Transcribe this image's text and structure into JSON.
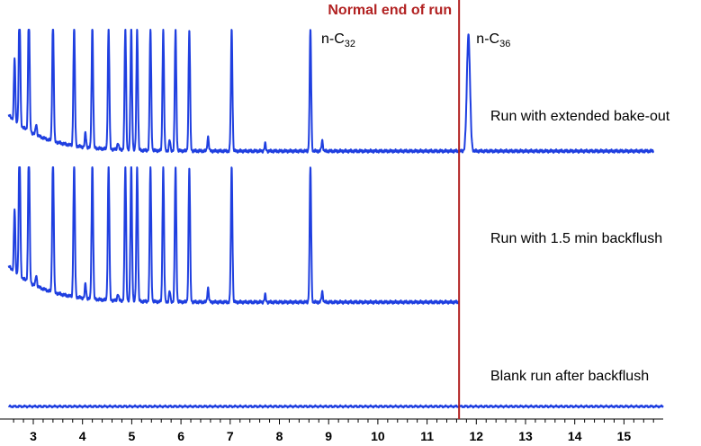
{
  "chart_data": {
    "type": "line",
    "title": "",
    "xlabel": "",
    "ylabel": "",
    "xlim": [
      2.5,
      15.8
    ],
    "xticks": [
      3,
      4,
      5,
      6,
      7,
      8,
      9,
      10,
      11,
      12,
      13,
      14,
      15
    ],
    "grid": false,
    "legend": "none",
    "colors": {
      "trace": "#1f3fe0",
      "marker": "#b22222",
      "axis": "#000000"
    },
    "marker_line": {
      "x": 11.65,
      "label": "Normal end of run"
    },
    "series": [
      {
        "name": "Run with extended bake-out",
        "end_x": 15.6,
        "offset_index": 0
      },
      {
        "name": "Run with 1.5 min backflush",
        "end_x": 11.65,
        "offset_index": 1
      },
      {
        "name": "Blank run after backflush",
        "end_x": 15.8,
        "offset_index": 2
      }
    ],
    "peaks_x": [
      2.72,
      2.91,
      3.4,
      3.83,
      4.2,
      4.53,
      4.87,
      4.99,
      5.11,
      5.38,
      5.64,
      5.89,
      6.17,
      7.03,
      8.63
    ],
    "minor_peaks_x": [
      2.62,
      3.06,
      4.06,
      4.72,
      5.77,
      6.55,
      7.71,
      8.87
    ],
    "late_peak_x": 11.84,
    "annotations": [
      {
        "text": "n-C",
        "sub": "32",
        "x": 8.85
      },
      {
        "text": "n-C",
        "sub": "36",
        "x": 12.0
      }
    ]
  }
}
